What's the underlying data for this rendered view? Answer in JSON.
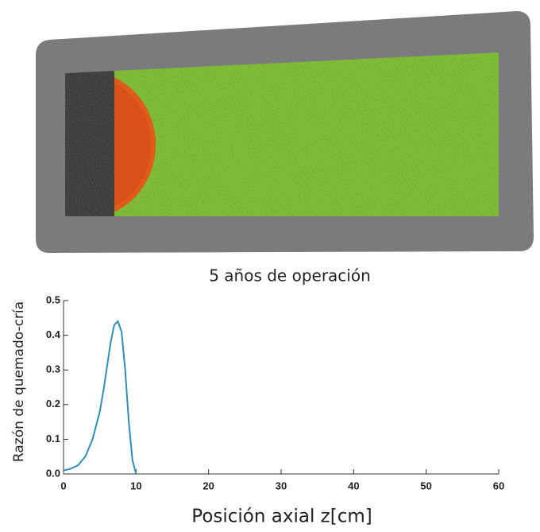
{
  "chart_data": {
    "type": "line",
    "title": "5 años de operación",
    "x_label": "Posición axial z[cm]",
    "y_label": "Razón de quemado-cría",
    "x": [
      0,
      1,
      2,
      3,
      4,
      5,
      5.5,
      6,
      6.5,
      7,
      7.5,
      8,
      8.5,
      9,
      9.5,
      10
    ],
    "series": [
      {
        "color": "#2a8fc0",
        "values": [
          0.01,
          0.015,
          0.025,
          0.05,
          0.1,
          0.18,
          0.24,
          0.31,
          0.38,
          0.43,
          0.44,
          0.41,
          0.3,
          0.15,
          0.04,
          0
        ]
      }
    ],
    "xlim": [
      0,
      60
    ],
    "xticks": [
      0,
      10,
      20,
      30,
      40,
      50,
      60
    ],
    "ylim": [
      0,
      0.5
    ],
    "yticks": [
      {
        "value": 0,
        "label": "0.0"
      },
      0.1,
      0.2,
      0.3,
      0.4,
      0.5
    ]
  }
}
